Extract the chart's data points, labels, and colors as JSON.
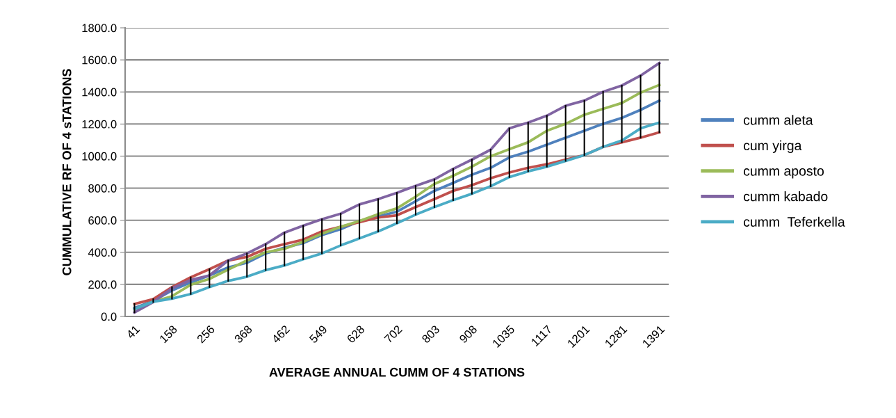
{
  "chart_data": {
    "type": "line",
    "xlabel": "AVERAGE ANNUAL CUMM OF 4 STATIONS",
    "ylabel": "CUMMULATIVE RF OF 4 sTATIONS",
    "categories": [
      "41",
      null,
      "158",
      null,
      "256",
      null,
      "368",
      null,
      "462",
      null,
      "549",
      null,
      "628",
      null,
      "702",
      null,
      "803",
      null,
      "908",
      null,
      "1035",
      null,
      "1117",
      null,
      "1201",
      null,
      "1281",
      null,
      "1391"
    ],
    "series": [
      {
        "name": "cumm aleta",
        "color": "#4f81bd",
        "values": [
          53,
          97,
          162,
          212,
          256,
          306,
          335,
          393,
          429,
          458,
          508,
          544,
          595,
          624,
          653,
          718,
          783,
          833,
          884,
          927,
          992,
          1028,
          1071,
          1115,
          1158,
          1201,
          1238,
          1288,
          1346
        ],
        "errors": [
          [
            25,
            78
          ],
          [
            90,
            108
          ],
          [
            111,
            183
          ],
          [
            140,
            244
          ],
          [
            183,
            295
          ],
          [
            222,
            349
          ],
          [
            248,
            393
          ],
          [
            289,
            451
          ],
          [
            318,
            523
          ],
          [
            357,
            566
          ],
          [
            393,
            606
          ],
          [
            443,
            641
          ],
          [
            487,
            699
          ],
          [
            530,
            732
          ],
          [
            581,
            771
          ],
          [
            635,
            814
          ],
          [
            682,
            855
          ],
          [
            725,
            920
          ],
          [
            765,
            978
          ],
          [
            812,
            1040
          ],
          [
            869,
            1173
          ],
          [
            905,
            1209
          ],
          [
            934,
            1252
          ],
          [
            970,
            1314
          ],
          [
            1006,
            1346
          ],
          [
            1057,
            1401
          ],
          [
            1086,
            1440
          ],
          [
            1115,
            1502
          ],
          [
            1148,
            1580
          ]
        ]
      },
      {
        "name": "cum yirga",
        "color": "#c0504d",
        "values": [
          78,
          108,
          183,
          244,
          295,
          349,
          371,
          422,
          451,
          479,
          530,
          559,
          588,
          617,
          631,
          682,
          732,
          783,
          819,
          862,
          898,
          927,
          949,
          978,
          1006,
          1057,
          1086,
          1115,
          1148
        ]
      },
      {
        "name": "cumm aposto",
        "color": "#9bbb59",
        "values": [
          46,
          92,
          126,
          198,
          234,
          292,
          349,
          400,
          422,
          465,
          516,
          559,
          595,
          638,
          674,
          747,
          826,
          877,
          934,
          999,
          1043,
          1086,
          1158,
          1201,
          1258,
          1295,
          1331,
          1396,
          1444
        ]
      },
      {
        "name": "cumm kabado",
        "color": "#8064a2",
        "values": [
          25,
          90,
          176,
          227,
          256,
          349,
          393,
          451,
          523,
          566,
          606,
          641,
          699,
          732,
          771,
          814,
          855,
          920,
          978,
          1040,
          1173,
          1209,
          1252,
          1314,
          1346,
          1401,
          1440,
          1502,
          1580
        ]
      },
      {
        "name": "cumm  Teferkella",
        "color": "#4bacc6",
        "values": [
          46,
          92,
          111,
          140,
          183,
          222,
          248,
          289,
          318,
          357,
          393,
          443,
          487,
          530,
          581,
          635,
          682,
          725,
          765,
          812,
          869,
          905,
          934,
          970,
          1006,
          1057,
          1097,
          1173,
          1209
        ]
      }
    ],
    "ylim": [
      0,
      1800
    ],
    "yticks": [
      {
        "value": 0,
        "label": "0.0"
      },
      {
        "value": 200,
        "label": "200.0"
      },
      {
        "value": 400,
        "label": "400.0"
      },
      {
        "value": 600,
        "label": "600.0"
      },
      {
        "value": 800,
        "label": "800.0"
      },
      {
        "value": 1000,
        "label": "1000.0"
      },
      {
        "value": 1200,
        "label": "1200.0"
      },
      {
        "value": 1400,
        "label": "1400.0"
      },
      {
        "value": 1600,
        "label": "1600.0"
      },
      {
        "value": 1800,
        "label": "1800.0"
      }
    ],
    "grid": "y",
    "legend": "right",
    "marker": "none",
    "line_style": "solid"
  }
}
